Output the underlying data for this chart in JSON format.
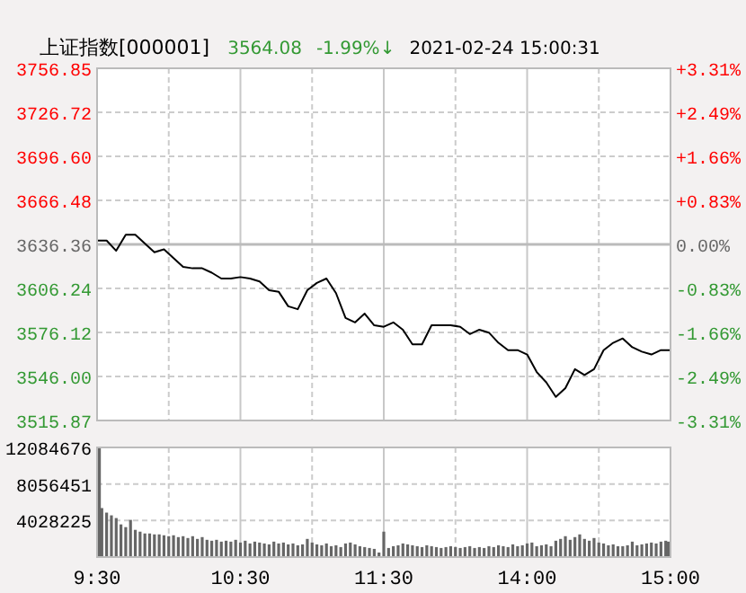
{
  "chart_data": [
    {
      "type": "line",
      "title": "上证指数[000001]",
      "annotations": [
        "3564.08",
        "-1.99%↓",
        "2021-02-24 15:00:31"
      ],
      "categories": [
        null,
        null,
        null,
        null,
        null,
        null,
        null,
        null,
        null,
        null,
        null,
        null,
        null,
        null,
        null,
        null,
        null,
        null,
        null,
        null,
        null,
        null,
        null,
        null,
        null,
        null,
        null,
        null,
        null,
        null,
        null,
        null,
        null,
        null,
        null,
        null,
        null,
        null,
        null,
        null,
        null,
        null,
        null,
        null,
        null,
        null,
        null,
        null,
        null,
        null,
        null,
        null,
        null,
        null,
        null,
        null,
        null,
        null,
        null,
        null,
        null
      ],
      "series": [
        {
          "color": "#000000",
          "values": [
            3639,
            3639,
            3632,
            3643,
            3643,
            3637,
            3631,
            3633,
            3627,
            3621,
            3620,
            3620,
            3617,
            3613,
            3613,
            3614,
            3613,
            3611,
            3605,
            3604,
            3594,
            3592,
            3605,
            3610,
            3613,
            3603,
            3586,
            3583,
            3589,
            3581,
            3580,
            3583,
            3578,
            3568,
            3568,
            3581,
            3581,
            3581,
            3580,
            3575,
            3578,
            3576,
            3569,
            3564,
            3564,
            3561,
            3549,
            3542,
            3532,
            3538,
            3551,
            3547,
            3551,
            3564,
            3569,
            3572,
            3566,
            3563,
            3561,
            3564,
            3564
          ]
        }
      ],
      "ylim": [
        3515.87,
        3756.85
      ],
      "yticks": [
        3756.85,
        3726.72,
        {
          "value": 3696.6,
          "label": "3696.60"
        },
        3666.48,
        3636.36,
        3606.24,
        3576.12,
        {
          "value": 3546,
          "label": "3546.00"
        },
        3515.87
      ],
      "y2lim": [
        -3.31,
        3.31
      ],
      "y2ticks": [
        {
          "value": 3.31,
          "label": "+3.31%"
        },
        {
          "value": 2.49,
          "label": "+2.49%"
        },
        {
          "value": 1.66,
          "label": "+1.66%"
        },
        {
          "value": 0.83,
          "label": "+0.83%"
        },
        {
          "value": 0,
          "label": "0.00%"
        },
        {
          "value": -0.83,
          "label": "-0.83%"
        },
        {
          "value": -1.66,
          "label": "-1.66%"
        },
        {
          "value": -2.49,
          "label": "-2.49%"
        },
        {
          "value": -3.31,
          "label": "-3.31%"
        }
      ],
      "ref_lines": [
        {
          "axis": "y",
          "value": 3636.36,
          "color": "#bbbbbb",
          "line_style": "solid"
        }
      ],
      "grid": true,
      "tick_labels": "y"
    },
    {
      "type": "bar",
      "categories": [
        "9:30",
        null,
        null,
        null,
        null,
        null,
        null,
        null,
        null,
        null,
        null,
        null,
        null,
        null,
        null,
        null,
        null,
        null,
        null,
        null,
        null,
        null,
        null,
        null,
        null,
        null,
        null,
        null,
        null,
        null,
        "10:30",
        null,
        null,
        null,
        null,
        null,
        null,
        null,
        null,
        null,
        null,
        null,
        null,
        null,
        null,
        null,
        null,
        null,
        null,
        null,
        null,
        null,
        null,
        null,
        null,
        null,
        null,
        null,
        null,
        null,
        "11:30",
        null,
        null,
        null,
        null,
        null,
        null,
        null,
        null,
        null,
        null,
        null,
        null,
        null,
        null,
        null,
        null,
        null,
        null,
        null,
        null,
        null,
        null,
        null,
        null,
        null,
        null,
        null,
        null,
        null,
        "14:00",
        null,
        null,
        null,
        null,
        null,
        null,
        null,
        null,
        null,
        null,
        null,
        null,
        null,
        null,
        null,
        null,
        null,
        null,
        null,
        null,
        null,
        null,
        null,
        null,
        null,
        null,
        null,
        null,
        null,
        "15:00"
      ],
      "values": [
        12000000,
        5400000,
        4900000,
        4600000,
        4300000,
        3600000,
        3300000,
        4100000,
        3000000,
        2800000,
        2600000,
        2600000,
        2500000,
        2500000,
        2400000,
        2300000,
        2400000,
        2200000,
        2300000,
        2100000,
        2300000,
        2000000,
        2200000,
        1900000,
        1800000,
        1900000,
        1700000,
        1800000,
        1700000,
        1900000,
        1600000,
        1800000,
        1500000,
        1700000,
        1600000,
        1500000,
        1400000,
        1700000,
        1500000,
        1600000,
        1400000,
        1500000,
        1300000,
        1400000,
        2000000,
        1600000,
        1400000,
        1300000,
        1500000,
        1200000,
        1300000,
        1100000,
        1500000,
        1600000,
        1400000,
        1200000,
        1100000,
        1000000,
        900000,
        500000,
        2800000,
        1000000,
        1200000,
        1300000,
        1500000,
        1400000,
        1300000,
        1200000,
        1100000,
        1300000,
        1200000,
        1100000,
        1000000,
        1100000,
        1200000,
        1100000,
        1000000,
        1100000,
        1200000,
        1000000,
        1100000,
        1000000,
        1200000,
        1100000,
        1300000,
        1200000,
        1100000,
        1400000,
        1200000,
        1300000,
        1500000,
        1600000,
        1200000,
        1300000,
        1400000,
        1200000,
        1800000,
        2000000,
        2300000,
        1900000,
        2200000,
        2500000,
        2000000,
        1800000,
        2100000,
        1600000,
        1500000,
        1300000,
        1400000,
        1200000,
        1200000,
        1300000,
        1700000,
        1300000,
        1400000,
        1500000,
        1600000,
        1500000,
        1700000,
        1800000,
        1700000
      ],
      "color": "#666666",
      "ylim": [
        0,
        12084676
      ],
      "yticks": [
        12084676,
        8056451,
        4028225,
        {
          "value": 0,
          "label": null
        }
      ],
      "grid": true
    }
  ]
}
